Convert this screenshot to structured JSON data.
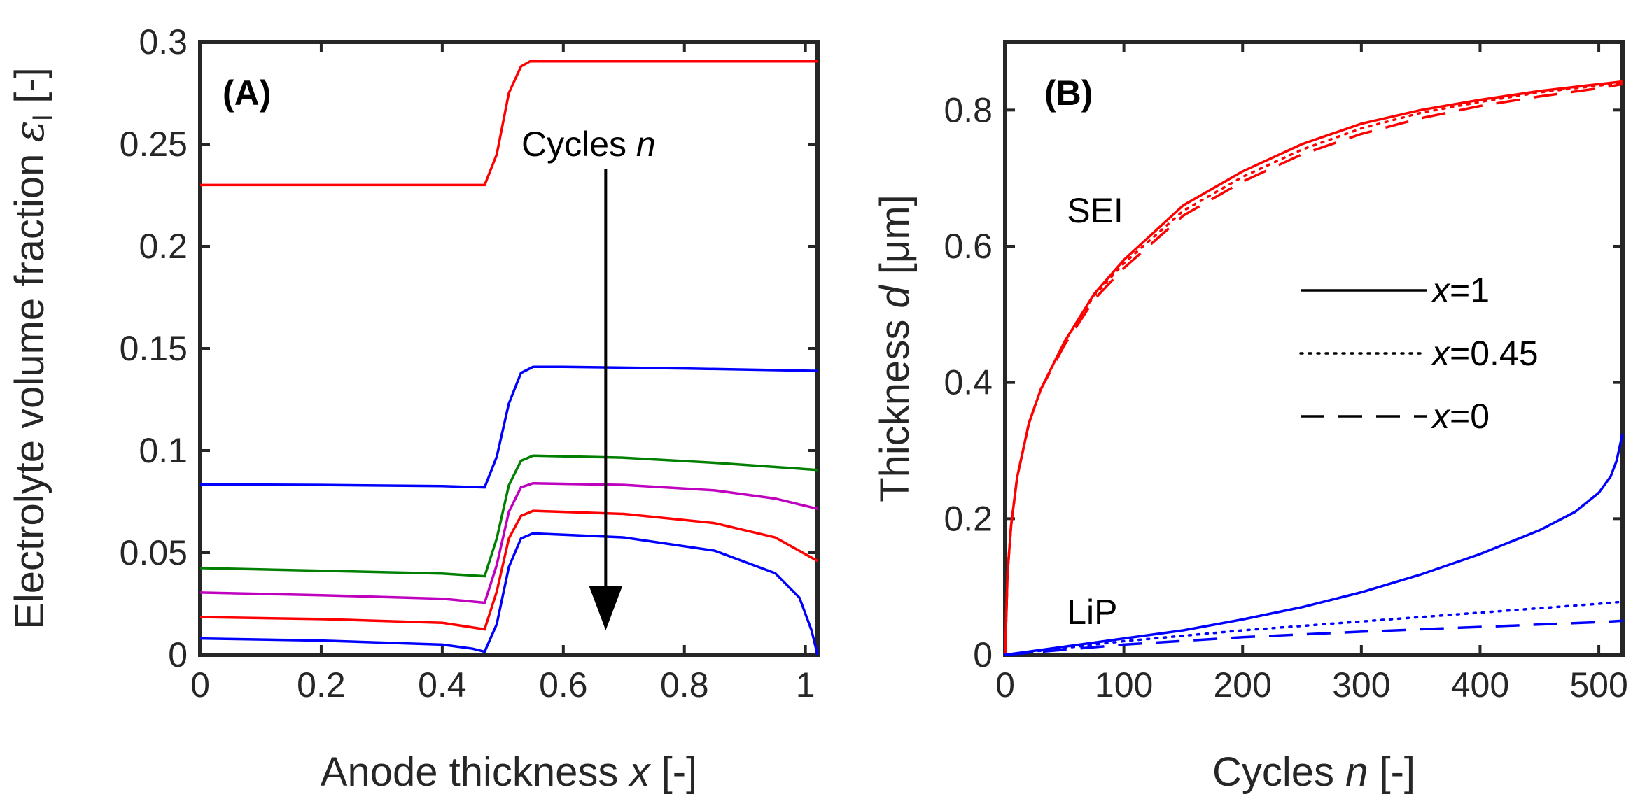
{
  "chart_data": [
    {
      "type": "line",
      "panel_label": "(A)",
      "xlabel_main": "Anode thickness ",
      "xlabel_var": "x",
      "xlabel_unit": " [-]",
      "ylabel_main": "Electrolyte volume fraction ",
      "ylabel_var": "ε",
      "ylabel_sub": "l",
      "ylabel_unit": " [-]",
      "xlim": [
        0,
        1.02
      ],
      "ylim": [
        0,
        0.3
      ],
      "xticks": [
        0,
        0.2,
        0.4,
        0.6,
        0.8,
        1
      ],
      "xtick_labels": [
        "0",
        "0.2",
        "0.4",
        "0.6",
        "0.8",
        "1"
      ],
      "yticks": [
        0,
        0.05,
        0.1,
        0.15,
        0.2,
        0.25,
        0.3
      ],
      "ytick_labels": [
        "0",
        "0.05",
        "0.1",
        "0.15",
        "0.2",
        "0.25",
        "0.3"
      ],
      "annotation_text": "Cycles ",
      "annotation_var": "n",
      "arrow": {
        "x": 0.67,
        "y_from": 0.238,
        "y_to": 0.012
      },
      "series": [
        {
          "name": "cycle-0",
          "color": "#ff0000",
          "x": [
            0,
            0.47,
            0.49,
            0.51,
            0.53,
            0.545,
            0.56,
            1.02
          ],
          "values": [
            0.23,
            0.23,
            0.245,
            0.275,
            0.288,
            0.2905,
            0.2905,
            0.2905
          ]
        },
        {
          "name": "cycle-1",
          "color": "#0000ff",
          "x": [
            0,
            0.2,
            0.4,
            0.47,
            0.49,
            0.51,
            0.53,
            0.55,
            0.6,
            0.8,
            1.02
          ],
          "values": [
            0.0835,
            0.0832,
            0.0826,
            0.082,
            0.097,
            0.123,
            0.138,
            0.141,
            0.141,
            0.1402,
            0.139
          ]
        },
        {
          "name": "cycle-2",
          "color": "#007f00",
          "x": [
            0,
            0.2,
            0.4,
            0.47,
            0.49,
            0.51,
            0.53,
            0.55,
            0.7,
            0.85,
            1.02
          ],
          "values": [
            0.0425,
            0.0412,
            0.0398,
            0.0385,
            0.057,
            0.083,
            0.095,
            0.0975,
            0.0965,
            0.094,
            0.0905
          ]
        },
        {
          "name": "cycle-3",
          "color": "#bf00bf",
          "x": [
            0,
            0.2,
            0.4,
            0.47,
            0.49,
            0.51,
            0.53,
            0.55,
            0.7,
            0.85,
            0.95,
            1.02
          ],
          "values": [
            0.0305,
            0.0292,
            0.0275,
            0.0255,
            0.044,
            0.07,
            0.082,
            0.084,
            0.0832,
            0.0805,
            0.0765,
            0.0715
          ]
        },
        {
          "name": "cycle-4",
          "color": "#ff0000",
          "x": [
            0,
            0.2,
            0.4,
            0.47,
            0.49,
            0.51,
            0.53,
            0.55,
            0.7,
            0.85,
            0.95,
            1.02
          ],
          "values": [
            0.0185,
            0.0175,
            0.0157,
            0.0125,
            0.031,
            0.057,
            0.068,
            0.0705,
            0.069,
            0.0645,
            0.0575,
            0.046
          ]
        },
        {
          "name": "cycle-5",
          "color": "#0000ff",
          "x": [
            0,
            0.2,
            0.4,
            0.45,
            0.47,
            0.49,
            0.51,
            0.53,
            0.55,
            0.7,
            0.85,
            0.95,
            0.99,
            1.01,
            1.02
          ],
          "values": [
            0.008,
            0.007,
            0.005,
            0.003,
            0.0015,
            0.015,
            0.043,
            0.057,
            0.0595,
            0.0575,
            0.051,
            0.04,
            0.028,
            0.012,
            0.0
          ]
        }
      ]
    },
    {
      "type": "line",
      "panel_label": "(B)",
      "xlabel_main": "Cycles ",
      "xlabel_var": "n",
      "xlabel_unit": " [-]",
      "ylabel_main": "Thickness ",
      "ylabel_var": "d",
      "ylabel_unit": " [μm]",
      "xlim": [
        0,
        520
      ],
      "ylim": [
        0,
        0.9
      ],
      "xticks": [
        0,
        100,
        200,
        300,
        400,
        500
      ],
      "xtick_labels": [
        "0",
        "100",
        "200",
        "300",
        "400",
        "500"
      ],
      "yticks": [
        0,
        0.2,
        0.4,
        0.6,
        0.8
      ],
      "ytick_labels": [
        "0",
        "0.2",
        "0.4",
        "0.6",
        "0.8"
      ],
      "annotations": [
        {
          "text": "SEI",
          "color": "#ff0000",
          "x": 52,
          "y": 0.635
        },
        {
          "text": "LiP",
          "color": "#0000ff",
          "x": 52,
          "y": 0.045
        }
      ],
      "legend": [
        {
          "var": "x",
          "label": "=1",
          "style": "solid"
        },
        {
          "var": "x",
          "label": "=0.45",
          "style": "dotted"
        },
        {
          "var": "x",
          "label": "=0",
          "style": "dashed"
        }
      ],
      "series": [
        {
          "name": "SEI x=1",
          "color": "#ff0000",
          "style": "solid",
          "x": [
            0,
            2,
            5,
            10,
            20,
            30,
            50,
            75,
            100,
            150,
            200,
            250,
            300,
            350,
            400,
            450,
            500,
            520
          ],
          "values": [
            0,
            0.12,
            0.19,
            0.26,
            0.34,
            0.39,
            0.46,
            0.53,
            0.58,
            0.66,
            0.71,
            0.75,
            0.78,
            0.8,
            0.815,
            0.828,
            0.838,
            0.842
          ]
        },
        {
          "name": "SEI x=0.45",
          "color": "#ff0000",
          "style": "dotted",
          "x": [
            0,
            2,
            5,
            10,
            20,
            30,
            50,
            75,
            100,
            150,
            200,
            250,
            300,
            350,
            400,
            450,
            500,
            520
          ],
          "values": [
            0,
            0.12,
            0.19,
            0.26,
            0.34,
            0.39,
            0.46,
            0.528,
            0.575,
            0.652,
            0.702,
            0.742,
            0.773,
            0.796,
            0.812,
            0.826,
            0.836,
            0.84
          ]
        },
        {
          "name": "SEI x=0",
          "color": "#ff0000",
          "style": "dashed",
          "x": [
            0,
            2,
            5,
            10,
            20,
            30,
            50,
            75,
            100,
            150,
            200,
            250,
            300,
            350,
            400,
            450,
            500,
            520
          ],
          "values": [
            0,
            0.12,
            0.19,
            0.26,
            0.34,
            0.39,
            0.455,
            0.522,
            0.568,
            0.645,
            0.695,
            0.735,
            0.765,
            0.788,
            0.806,
            0.82,
            0.832,
            0.838
          ]
        },
        {
          "name": "LiP x=1",
          "color": "#0000ff",
          "style": "solid",
          "x": [
            0,
            50,
            100,
            150,
            200,
            250,
            300,
            350,
            400,
            450,
            480,
            500,
            510,
            515,
            520
          ],
          "values": [
            0,
            0.012,
            0.024,
            0.036,
            0.052,
            0.07,
            0.092,
            0.118,
            0.148,
            0.183,
            0.21,
            0.238,
            0.262,
            0.285,
            0.325
          ]
        },
        {
          "name": "LiP x=0.45",
          "color": "#0000ff",
          "style": "dotted",
          "x": [
            0,
            100,
            200,
            300,
            400,
            500,
            520
          ],
          "values": [
            0,
            0.02,
            0.036,
            0.049,
            0.062,
            0.075,
            0.078
          ]
        },
        {
          "name": "LiP x=0",
          "color": "#0000ff",
          "style": "dashed",
          "x": [
            0,
            100,
            200,
            300,
            400,
            500,
            520
          ],
          "values": [
            0,
            0.015,
            0.026,
            0.034,
            0.041,
            0.048,
            0.05
          ]
        }
      ]
    }
  ]
}
